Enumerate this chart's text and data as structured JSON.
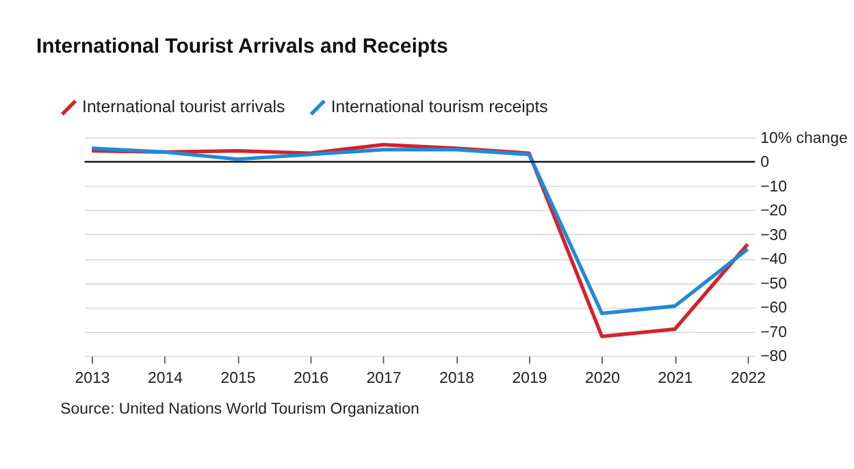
{
  "chart_data": {
    "type": "line",
    "title": "International Tourist Arrivals and Receipts",
    "categories": [
      "2013",
      "2014",
      "2015",
      "2016",
      "2017",
      "2018",
      "2019",
      "2020",
      "2021",
      "2022"
    ],
    "series": [
      {
        "name": "International tourist arrivals",
        "color": "#d3232a",
        "values": [
          4.5,
          4,
          4.5,
          3.5,
          7,
          5.5,
          3.5,
          -72,
          -69,
          -34
        ]
      },
      {
        "name": "International tourism receipts",
        "color": "#1f8ad8",
        "values": [
          5.5,
          4,
          1,
          3,
          5,
          5,
          3,
          -62.5,
          -59.5,
          -36
        ]
      }
    ],
    "ylim": [
      -80,
      10
    ],
    "yticks": [
      {
        "value": 10,
        "label": "10% change"
      },
      0,
      -10,
      -20,
      -30,
      -40,
      -50,
      -60,
      -70,
      -80
    ],
    "ref_lines": [
      {
        "axis": "y",
        "value": 0,
        "color": "#000000"
      }
    ],
    "grid": "y",
    "legend": "top left",
    "marker": "none",
    "line_style": "solid",
    "annotations": [
      "Source: United Nations World Tourism Organization"
    ]
  }
}
